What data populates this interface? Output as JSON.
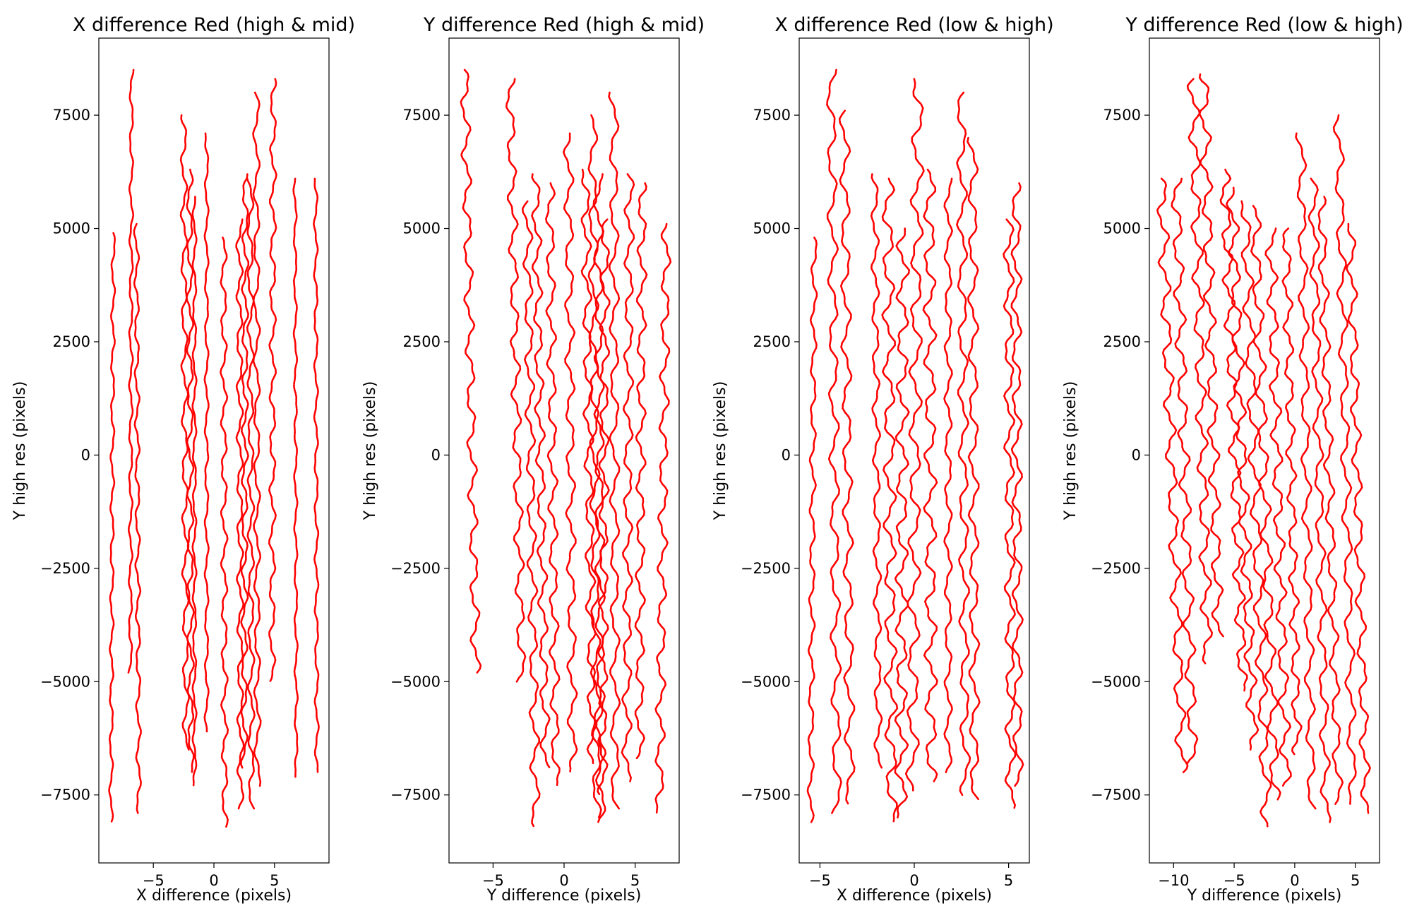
{
  "figure": {
    "background": "#ffffff",
    "line_color": "#ff0000"
  },
  "chart_data": [
    {
      "type": "scatter",
      "title": "X difference Red (high & mid)",
      "xlabel": "X difference (pixels)",
      "ylabel": "Y high res (pixels)",
      "xlim": [
        -9.5,
        9.5
      ],
      "ylim": [
        -9000,
        9200
      ],
      "xticks": [
        -5,
        0,
        5
      ],
      "yticks": [
        -7500,
        -5000,
        -2500,
        0,
        2500,
        5000,
        7500
      ],
      "xtick_labels": [
        "−5",
        "0",
        "5"
      ],
      "ytick_labels": [
        "−7500",
        "−5000",
        "−2500",
        "0",
        "2500",
        "5000",
        "7500"
      ],
      "grid": false,
      "series": [
        {
          "x_top": -8.3,
          "x_bottom": -8.5,
          "y_top": 4900,
          "y_bottom": -8100,
          "wiggle": 0.12
        },
        {
          "x_top": -6.8,
          "x_bottom": -6.9,
          "y_top": 8500,
          "y_bottom": -4800,
          "wiggle": 0.12
        },
        {
          "x_top": -6.4,
          "x_bottom": -6.2,
          "y_top": 5100,
          "y_bottom": -7900,
          "wiggle": 0.15
        },
        {
          "x_top": -2.5,
          "x_bottom": -2.3,
          "y_top": 7500,
          "y_bottom": -6500,
          "wiggle": 0.2
        },
        {
          "x_top": -2.0,
          "x_bottom": -1.9,
          "y_top": 6300,
          "y_bottom": -7000,
          "wiggle": 0.2
        },
        {
          "x_top": -1.6,
          "x_bottom": -1.6,
          "y_top": 5700,
          "y_bottom": -7300,
          "wiggle": 0.12
        },
        {
          "x_top": -0.6,
          "x_bottom": -0.6,
          "y_top": 7100,
          "y_bottom": -6100,
          "wiggle": 0.12
        },
        {
          "x_top": 0.8,
          "x_bottom": 0.9,
          "y_top": 4800,
          "y_bottom": -8200,
          "wiggle": 0.2
        },
        {
          "x_top": 2.1,
          "x_bottom": 2.2,
          "y_top": 5200,
          "y_bottom": -7800,
          "wiggle": 0.2
        },
        {
          "x_top": 2.6,
          "x_bottom": 2.5,
          "y_top": 6100,
          "y_bottom": -6900,
          "wiggle": 0.2
        },
        {
          "x_top": 3.0,
          "x_bottom": 3.1,
          "y_top": 6200,
          "y_bottom": -7800,
          "wiggle": 0.2
        },
        {
          "x_top": 3.5,
          "x_bottom": 3.6,
          "y_top": 8000,
          "y_bottom": -7300,
          "wiggle": 0.2
        },
        {
          "x_top": 4.9,
          "x_bottom": 4.8,
          "y_top": 8300,
          "y_bottom": -5000,
          "wiggle": 0.2
        },
        {
          "x_top": 6.7,
          "x_bottom": 6.8,
          "y_top": 6100,
          "y_bottom": -7100,
          "wiggle": 0.1
        },
        {
          "x_top": 8.4,
          "x_bottom": 8.5,
          "y_top": 6100,
          "y_bottom": -7000,
          "wiggle": 0.12
        }
      ]
    },
    {
      "type": "scatter",
      "title": "Y difference Red (high & mid)",
      "xlabel": "Y difference (pixels)",
      "ylabel": "Y high res (pixels)",
      "xlim": [
        -8.1,
        8.1
      ],
      "ylim": [
        -9000,
        9200
      ],
      "xticks": [
        -5,
        0,
        5
      ],
      "yticks": [
        -7500,
        -5000,
        -2500,
        0,
        2500,
        5000,
        7500
      ],
      "xtick_labels": [
        "−5",
        "0",
        "5"
      ],
      "ytick_labels": [
        "−7500",
        "−5000",
        "−2500",
        "0",
        "2500",
        "5000",
        "7500"
      ],
      "grid": false,
      "series": [
        {
          "x_top": -7.0,
          "x_bottom": -6.2,
          "y_top": 8500,
          "y_bottom": -4800,
          "wiggle": 0.25
        },
        {
          "x_top": -3.8,
          "x_bottom": -3.0,
          "y_top": 8300,
          "y_bottom": -5000,
          "wiggle": 0.25
        },
        {
          "x_top": -2.6,
          "x_bottom": -2.0,
          "y_top": 5600,
          "y_bottom": -8200,
          "wiggle": 0.25
        },
        {
          "x_top": -2.0,
          "x_bottom": -1.3,
          "y_top": 6200,
          "y_bottom": -6900,
          "wiggle": 0.25
        },
        {
          "x_top": -1.0,
          "x_bottom": -0.6,
          "y_top": 6000,
          "y_bottom": -7300,
          "wiggle": 0.25
        },
        {
          "x_top": 0.3,
          "x_bottom": 0.6,
          "y_top": 7100,
          "y_bottom": -7000,
          "wiggle": 0.25
        },
        {
          "x_top": 1.5,
          "x_bottom": 2.0,
          "y_top": 6300,
          "y_bottom": -6800,
          "wiggle": 0.25
        },
        {
          "x_top": 2.0,
          "x_bottom": 2.3,
          "y_top": 7500,
          "y_bottom": -8000,
          "wiggle": 0.25
        },
        {
          "x_top": 2.4,
          "x_bottom": 2.6,
          "y_top": 6200,
          "y_bottom": -8100,
          "wiggle": 0.25
        },
        {
          "x_top": 2.9,
          "x_bottom": 2.7,
          "y_top": 5200,
          "y_bottom": -7500,
          "wiggle": 0.25
        },
        {
          "x_top": 3.5,
          "x_bottom": 3.6,
          "y_top": 8000,
          "y_bottom": -7800,
          "wiggle": 0.25
        },
        {
          "x_top": 4.6,
          "x_bottom": 4.4,
          "y_top": 6200,
          "y_bottom": -7200,
          "wiggle": 0.25
        },
        {
          "x_top": 5.5,
          "x_bottom": 5.3,
          "y_top": 6000,
          "y_bottom": -6700,
          "wiggle": 0.25
        },
        {
          "x_top": 7.2,
          "x_bottom": 6.7,
          "y_top": 5100,
          "y_bottom": -7900,
          "wiggle": 0.25
        }
      ]
    },
    {
      "type": "scatter",
      "title": "X difference Red (low & high)",
      "xlabel": "X difference (pixels)",
      "ylabel": "Y high res (pixels)",
      "xlim": [
        -6.1,
        6.1
      ],
      "ylim": [
        -9000,
        9200
      ],
      "xticks": [
        -5,
        0,
        5
      ],
      "yticks": [
        -7500,
        -5000,
        -2500,
        0,
        2500,
        5000,
        7500
      ],
      "xtick_labels": [
        "−5",
        "0",
        "5"
      ],
      "ytick_labels": [
        "−7500",
        "−5000",
        "−2500",
        "0",
        "2500",
        "5000",
        "7500"
      ],
      "grid": false,
      "series": [
        {
          "x_top": -5.3,
          "x_bottom": -5.5,
          "y_top": 4800,
          "y_bottom": -8100,
          "wiggle": 0.12
        },
        {
          "x_top": -4.4,
          "x_bottom": -4.1,
          "y_top": 8500,
          "y_bottom": -7900,
          "wiggle": 0.2
        },
        {
          "x_top": -3.7,
          "x_bottom": -3.4,
          "y_top": 7600,
          "y_bottom": -7700,
          "wiggle": 0.2
        },
        {
          "x_top": -2.1,
          "x_bottom": -1.9,
          "y_top": 6200,
          "y_bottom": -6900,
          "wiggle": 0.15
        },
        {
          "x_top": -1.4,
          "x_bottom": -1.2,
          "y_top": 6100,
          "y_bottom": -8100,
          "wiggle": 0.25
        },
        {
          "x_top": -0.6,
          "x_bottom": -0.7,
          "y_top": 5000,
          "y_bottom": -8000,
          "wiggle": 0.25
        },
        {
          "x_top": 0.2,
          "x_bottom": -0.1,
          "y_top": 8300,
          "y_bottom": -7400,
          "wiggle": 0.25
        },
        {
          "x_top": 0.8,
          "x_bottom": 0.9,
          "y_top": 6300,
          "y_bottom": -7200,
          "wiggle": 0.25
        },
        {
          "x_top": 1.8,
          "x_bottom": 1.8,
          "y_top": 6100,
          "y_bottom": -7000,
          "wiggle": 0.15
        },
        {
          "x_top": 2.5,
          "x_bottom": 2.7,
          "y_top": 8000,
          "y_bottom": -7500,
          "wiggle": 0.2
        },
        {
          "x_top": 3.1,
          "x_bottom": 3.2,
          "y_top": 7000,
          "y_bottom": -7600,
          "wiggle": 0.2
        },
        {
          "x_top": 5.0,
          "x_bottom": 5.1,
          "y_top": 5200,
          "y_bottom": -7800,
          "wiggle": 0.2
        },
        {
          "x_top": 5.4,
          "x_bottom": 5.5,
          "y_top": 6000,
          "y_bottom": -7300,
          "wiggle": 0.2
        }
      ]
    },
    {
      "type": "scatter",
      "title": "Y difference Red (low & high)",
      "xlabel": "Y difference (pixels)",
      "ylabel": "Y high res (pixels)",
      "xlim": [
        -12,
        7
      ],
      "ylim": [
        -9000,
        9200
      ],
      "xticks": [
        -10,
        -5,
        0,
        5
      ],
      "yticks": [
        -7500,
        -5000,
        -2500,
        0,
        2500,
        5000,
        7500
      ],
      "xtick_labels": [
        "−10",
        "−5",
        "0",
        "5"
      ],
      "ytick_labels": [
        "−7500",
        "−5000",
        "−2500",
        "0",
        "2500",
        "5000",
        "7500"
      ],
      "grid": false,
      "series": [
        {
          "x_top": -11.0,
          "x_bottom": -9.3,
          "y_top": 6100,
          "y_bottom": -7000,
          "wiggle": 0.35
        },
        {
          "x_top": -9.8,
          "x_bottom": -8.4,
          "y_top": 6100,
          "y_bottom": -6800,
          "wiggle": 0.35
        },
        {
          "x_top": -8.4,
          "x_bottom": -7.2,
          "y_top": 8300,
          "y_bottom": -4600,
          "wiggle": 0.35
        },
        {
          "x_top": -7.5,
          "x_bottom": -6.3,
          "y_top": 8400,
          "y_bottom": -4000,
          "wiggle": 0.35
        },
        {
          "x_top": -5.8,
          "x_bottom": -4.3,
          "y_top": 6300,
          "y_bottom": -5200,
          "wiggle": 0.35
        },
        {
          "x_top": -5.2,
          "x_bottom": -3.4,
          "y_top": 5900,
          "y_bottom": -6500,
          "wiggle": 0.35
        },
        {
          "x_top": -4.1,
          "x_bottom": -2.3,
          "y_top": 5600,
          "y_bottom": -8200,
          "wiggle": 0.35
        },
        {
          "x_top": -3.3,
          "x_bottom": -1.6,
          "y_top": 5500,
          "y_bottom": -7600,
          "wiggle": 0.35
        },
        {
          "x_top": -2.0,
          "x_bottom": -0.7,
          "y_top": 5000,
          "y_bottom": -7300,
          "wiggle": 0.35
        },
        {
          "x_top": -0.7,
          "x_bottom": 0.2,
          "y_top": 5000,
          "y_bottom": -6600,
          "wiggle": 0.3
        },
        {
          "x_top": 0.5,
          "x_bottom": 1.4,
          "y_top": 7100,
          "y_bottom": -7800,
          "wiggle": 0.3
        },
        {
          "x_top": 1.5,
          "x_bottom": 2.6,
          "y_top": 6100,
          "y_bottom": -8100,
          "wiggle": 0.3
        },
        {
          "x_top": 2.2,
          "x_bottom": 3.6,
          "y_top": 5700,
          "y_bottom": -7700,
          "wiggle": 0.3
        },
        {
          "x_top": 3.6,
          "x_bottom": 4.8,
          "y_top": 7500,
          "y_bottom": -7700,
          "wiggle": 0.3
        },
        {
          "x_top": 4.6,
          "x_bottom": 5.9,
          "y_top": 5100,
          "y_bottom": -7900,
          "wiggle": 0.3
        }
      ]
    }
  ]
}
